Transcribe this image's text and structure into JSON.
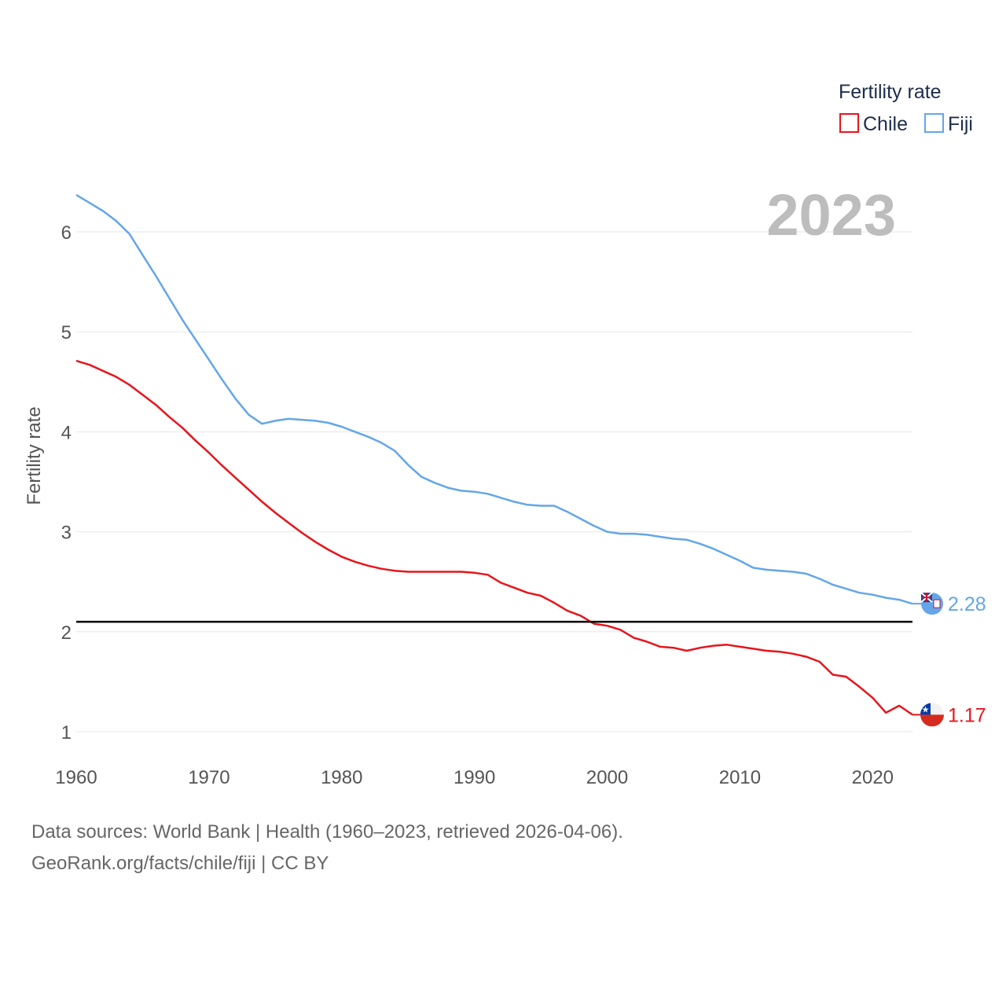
{
  "chart_data": {
    "type": "line",
    "title": "Fertility rate",
    "xlabel": "",
    "ylabel": "Fertility rate",
    "xlim": [
      1960,
      2023
    ],
    "ylim": [
      1,
      6.5
    ],
    "x_ticks": [
      "1960",
      "1970",
      "1980",
      "1990",
      "2000",
      "2010",
      "2020"
    ],
    "y_ticks": [
      "1",
      "2",
      "3",
      "4",
      "5",
      "6"
    ],
    "year_label": "2023",
    "reference_line": 2.1,
    "x": [
      1960,
      1961,
      1962,
      1963,
      1964,
      1965,
      1966,
      1967,
      1968,
      1969,
      1970,
      1971,
      1972,
      1973,
      1974,
      1975,
      1976,
      1977,
      1978,
      1979,
      1980,
      1981,
      1982,
      1983,
      1984,
      1985,
      1986,
      1987,
      1988,
      1989,
      1990,
      1991,
      1992,
      1993,
      1994,
      1995,
      1996,
      1997,
      1998,
      1999,
      2000,
      2001,
      2002,
      2003,
      2004,
      2005,
      2006,
      2007,
      2008,
      2009,
      2010,
      2011,
      2012,
      2013,
      2014,
      2015,
      2016,
      2017,
      2018,
      2019,
      2020,
      2021,
      2022,
      2023
    ],
    "series": [
      {
        "name": "Chile",
        "color": "#e8141b",
        "end_label": "1.17",
        "values": [
          4.71,
          4.67,
          4.61,
          4.55,
          4.47,
          4.37,
          4.27,
          4.15,
          4.04,
          3.91,
          3.79,
          3.66,
          3.54,
          3.42,
          3.3,
          3.19,
          3.09,
          2.99,
          2.9,
          2.82,
          2.75,
          2.7,
          2.66,
          2.63,
          2.61,
          2.6,
          2.6,
          2.6,
          2.6,
          2.6,
          2.59,
          2.57,
          2.49,
          2.44,
          2.39,
          2.36,
          2.29,
          2.21,
          2.16,
          2.08,
          2.06,
          2.02,
          1.94,
          1.9,
          1.85,
          1.84,
          1.81,
          1.84,
          1.86,
          1.87,
          1.85,
          1.83,
          1.81,
          1.8,
          1.78,
          1.75,
          1.7,
          1.57,
          1.55,
          1.45,
          1.34,
          1.19,
          1.26,
          1.17
        ]
      },
      {
        "name": "Fiji",
        "color": "#64a6e8",
        "end_label": "2.28",
        "values": [
          6.37,
          6.29,
          6.21,
          6.11,
          5.98,
          5.77,
          5.56,
          5.34,
          5.12,
          4.92,
          4.72,
          4.52,
          4.33,
          4.17,
          4.08,
          4.11,
          4.13,
          4.12,
          4.11,
          4.09,
          4.05,
          4.0,
          3.95,
          3.89,
          3.81,
          3.67,
          3.55,
          3.49,
          3.44,
          3.41,
          3.4,
          3.38,
          3.34,
          3.3,
          3.27,
          3.26,
          3.26,
          3.2,
          3.13,
          3.06,
          3.0,
          2.98,
          2.98,
          2.97,
          2.95,
          2.93,
          2.92,
          2.88,
          2.83,
          2.77,
          2.71,
          2.64,
          2.62,
          2.61,
          2.6,
          2.58,
          2.53,
          2.47,
          2.43,
          2.39,
          2.37,
          2.34,
          2.32,
          2.28
        ]
      }
    ],
    "legend": {
      "title": "Fertility rate",
      "items": [
        "Chile",
        "Fiji"
      ],
      "position": "top-right"
    }
  },
  "source": {
    "line1": "Data sources: World Bank | Health (1960–2023, retrieved 2026-04-06).",
    "line2": "GeoRank.org/facts/chile/fiji | CC BY"
  },
  "icons": {
    "chile_marker": "chile-flag-icon",
    "fiji_marker": "fiji-flag-icon"
  }
}
